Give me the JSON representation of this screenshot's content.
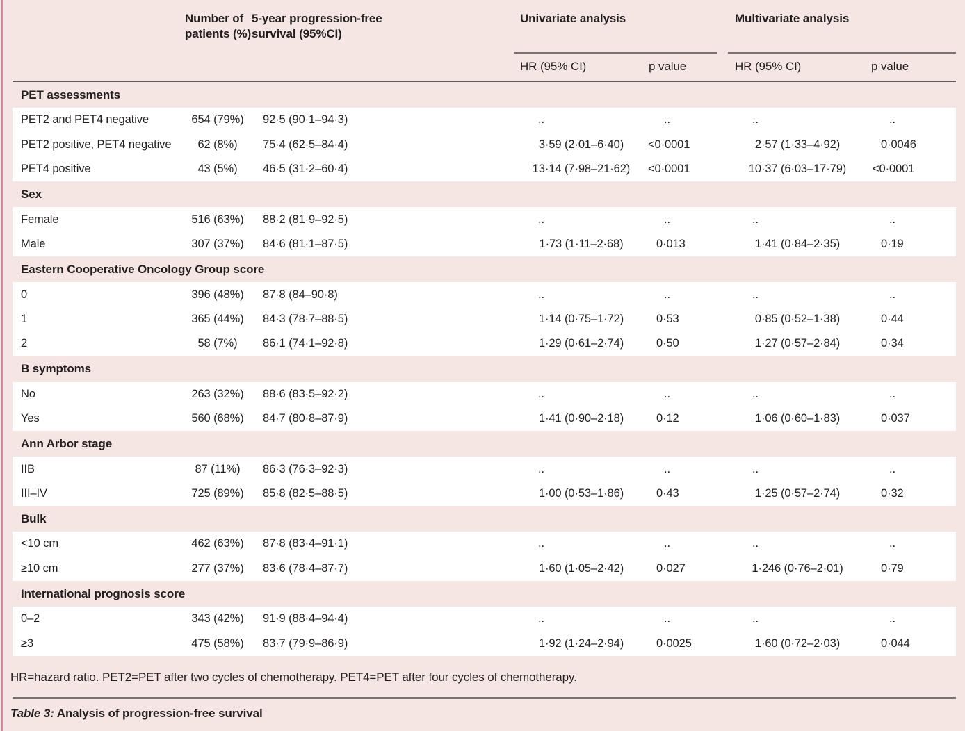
{
  "colors": {
    "page_bg": "#f5e6e3",
    "row_bg": "#ffffff",
    "accent": "#c98e9c",
    "rule_dark": "#5f5958",
    "rule_light": "#787271",
    "text": "#231f1f"
  },
  "header": {
    "col_patients": "Number of patients (%)",
    "col_survival": "5-year progression-free survival (95%CI)",
    "group_univariate": "Univariate analysis",
    "group_multivariate": "Multivariate analysis",
    "sub_hr_univariate": "HR (95% CI)",
    "sub_p_univariate": "p value",
    "sub_hr_multivariate": "HR (95% CI)",
    "sub_p_multivariate": "p value"
  },
  "sections": [
    {
      "label": "PET assessments",
      "rows": [
        {
          "label": "PET2 and PET4 negative",
          "patients": "654 (79%)",
          "survival": "92·5 (90·1–94·3)",
          "uni_hr": "..",
          "uni_p": "..",
          "multi_hr": "..",
          "multi_p": ".."
        },
        {
          "label": "PET2 positive, PET4 negative",
          "patients": "62 (8%)",
          "survival": "75·4 (62·5–84·4)",
          "uni_hr": "3·59 (2·01–6·40)",
          "uni_p": "<0·0001",
          "multi_hr": "2·57 (1·33–4·92)",
          "multi_p": "0·0046"
        },
        {
          "label": "PET4 positive",
          "patients": "43 (5%)",
          "survival": "46·5 (31·2–60·4)",
          "uni_hr": "13·14 (7·98–21·62)",
          "uni_p": "<0·0001",
          "multi_hr": "10·37 (6·03–17·79)",
          "multi_p": "<0·0001"
        }
      ]
    },
    {
      "label": "Sex",
      "rows": [
        {
          "label": "Female",
          "patients": "516 (63%)",
          "survival": "88·2 (81·9–92·5)",
          "uni_hr": "..",
          "uni_p": "..",
          "multi_hr": "..",
          "multi_p": ".."
        },
        {
          "label": "Male",
          "patients": "307 (37%)",
          "survival": "84·6 (81·1–87·5)",
          "uni_hr": "1·73 (1·11–2·68)",
          "uni_p": "0·013",
          "multi_hr": "1·41 (0·84–2·35)",
          "multi_p": "0·19"
        }
      ]
    },
    {
      "label": "Eastern Cooperative Oncology Group score",
      "rows": [
        {
          "label": "0",
          "patients": "396 (48%)",
          "survival": "87·8 (84–90·8)",
          "uni_hr": "..",
          "uni_p": "..",
          "multi_hr": "..",
          "multi_p": ".."
        },
        {
          "label": "1",
          "patients": "365 (44%)",
          "survival": "84·3 (78·7–88·5)",
          "uni_hr": "1·14 (0·75–1·72)",
          "uni_p": "0·53",
          "multi_hr": "0·85 (0·52–1·38)",
          "multi_p": "0·44"
        },
        {
          "label": "2",
          "patients": "58 (7%)",
          "survival": "86·1 (74·1–92·8)",
          "uni_hr": "1·29 (0·61–2·74)",
          "uni_p": "0·50",
          "multi_hr": "1·27 (0·57–2·84)",
          "multi_p": "0·34"
        }
      ]
    },
    {
      "label": "B symptoms",
      "rows": [
        {
          "label": "No",
          "patients": "263 (32%)",
          "survival": "88·6 (83·5–92·2)",
          "uni_hr": "..",
          "uni_p": "..",
          "multi_hr": "..",
          "multi_p": ".."
        },
        {
          "label": "Yes",
          "patients": "560 (68%)",
          "survival": "84·7 (80·8–87·9)",
          "uni_hr": "1·41 (0·90–2·18)",
          "uni_p": "0·12",
          "multi_hr": "1·06 (0·60–1·83)",
          "multi_p": "0·037"
        }
      ]
    },
    {
      "label": "Ann Arbor stage",
      "rows": [
        {
          "label": "IIB",
          "patients": "87 (11%)",
          "survival": "86·3 (76·3–92·3)",
          "uni_hr": "..",
          "uni_p": "..",
          "multi_hr": "..",
          "multi_p": ".."
        },
        {
          "label": "III–IV",
          "patients": "725 (89%)",
          "survival": "85·8 (82·5–88·5)",
          "uni_hr": "1·00 (0·53–1·86)",
          "uni_p": "0·43",
          "multi_hr": "1·25 (0·57–2·74)",
          "multi_p": "0·32"
        }
      ]
    },
    {
      "label": "Bulk",
      "rows": [
        {
          "label": "<10 cm",
          "patients": "462 (63%)",
          "survival": "87·8 (83·4–91·1)",
          "uni_hr": "..",
          "uni_p": "..",
          "multi_hr": "..",
          "multi_p": ".."
        },
        {
          "label": "≥10 cm",
          "patients": "277 (37%)",
          "survival": "83·6 (78·4–87·7)",
          "uni_hr": "1·60 (1·05–2·42)",
          "uni_p": "0·027",
          "multi_hr": "1·246 (0·76–2·01)",
          "multi_p": "0·79"
        }
      ]
    },
    {
      "label": "International prognosis score",
      "rows": [
        {
          "label": "0–2",
          "patients": "343 (42%)",
          "survival": "91·9 (88·4–94·4)",
          "uni_hr": "..",
          "uni_p": "..",
          "multi_hr": "..",
          "multi_p": ".."
        },
        {
          "label": "≥3",
          "patients": "475 (58%)",
          "survival": "83·7 (79·9–86·9)",
          "uni_hr": "1·92 (1·24–2·94)",
          "uni_p": "0·0025",
          "multi_hr": "1·60 (0·72–2·03)",
          "multi_p": "0·044"
        }
      ]
    }
  ],
  "footnote": "HR=hazard ratio. PET2=PET after two cycles of chemotherapy. PET4=PET after four cycles of chemotherapy.",
  "caption": {
    "label": "Table 3:",
    "title": " Analysis of progression-free survival"
  }
}
